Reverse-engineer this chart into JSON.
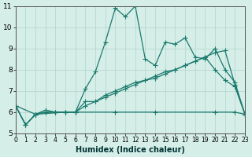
{
  "xlabel": "Humidex (Indice chaleur)",
  "ylabel": "",
  "xlim": [
    0,
    23
  ],
  "ylim": [
    5,
    11
  ],
  "yticks": [
    5,
    6,
    7,
    8,
    9,
    10,
    11
  ],
  "xticks": [
    0,
    1,
    2,
    3,
    4,
    5,
    6,
    7,
    8,
    9,
    10,
    11,
    12,
    13,
    14,
    15,
    16,
    17,
    18,
    19,
    20,
    21,
    22,
    23
  ],
  "bg_color": "#d6eee8",
  "line_color": "#1a7a6e",
  "grid_color": "#b0d4cc",
  "lines": [
    {
      "x": [
        0,
        1,
        2,
        3,
        4,
        5,
        6,
        7,
        8,
        9,
        10,
        11,
        12,
        13,
        14,
        15,
        16,
        17,
        18,
        19,
        20,
        21,
        22,
        23
      ],
      "y": [
        6.3,
        5.4,
        5.9,
        6.1,
        6.0,
        6.0,
        6.0,
        7.1,
        7.9,
        9.3,
        10.9,
        10.5,
        11.0,
        8.5,
        8.2,
        9.3,
        9.2,
        9.5,
        8.6,
        8.5,
        9.0,
        8.0,
        7.4,
        5.9
      ]
    },
    {
      "x": [
        0,
        1,
        2,
        3,
        4,
        5,
        6,
        7,
        8,
        9,
        10,
        11,
        12,
        13,
        14,
        15,
        16,
        17,
        18,
        19,
        20,
        21,
        22,
        23
      ],
      "y": [
        6.3,
        5.4,
        5.9,
        6.0,
        6.0,
        6.0,
        6.0,
        6.5,
        6.5,
        6.8,
        7.0,
        7.2,
        7.4,
        7.5,
        7.7,
        7.9,
        8.0,
        8.2,
        8.4,
        8.6,
        8.8,
        8.9,
        7.3,
        5.9
      ]
    },
    {
      "x": [
        0,
        1,
        2,
        3,
        4,
        5,
        6,
        7,
        8,
        9,
        10,
        11,
        12,
        13,
        14,
        15,
        16,
        17,
        18,
        19,
        20,
        21,
        22,
        23
      ],
      "y": [
        6.3,
        5.4,
        5.9,
        6.0,
        6.0,
        6.0,
        6.0,
        6.3,
        6.5,
        6.7,
        6.9,
        7.1,
        7.3,
        7.5,
        7.6,
        7.8,
        8.0,
        8.2,
        8.4,
        8.6,
        8.0,
        7.5,
        7.2,
        5.9
      ]
    },
    {
      "x": [
        0,
        2,
        5,
        10,
        14,
        20,
        22,
        23
      ],
      "y": [
        6.3,
        5.9,
        6.0,
        6.0,
        6.0,
        6.0,
        6.0,
        5.9
      ]
    }
  ]
}
